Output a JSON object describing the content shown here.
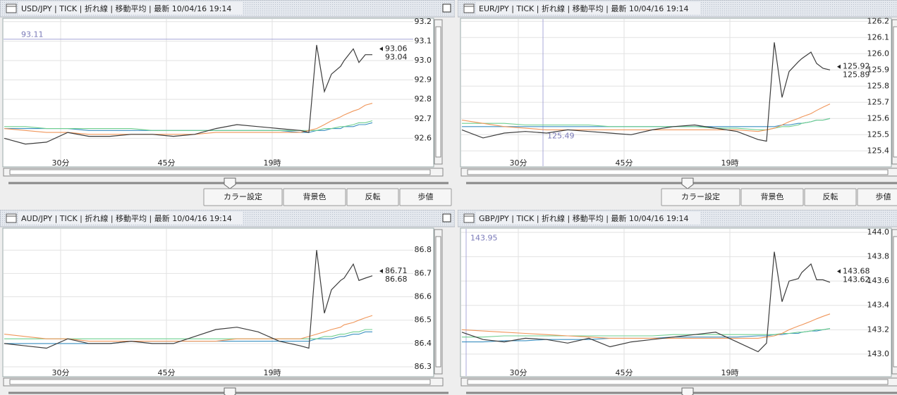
{
  "chart_data": [
    {
      "type": "line",
      "title": "USD/JPY | TICK | 折れ線 | 移動平均 | 最新 10/04/16 19:14",
      "x": [
        22,
        25,
        28,
        31,
        34,
        37,
        40,
        43,
        46,
        49,
        52,
        55,
        58,
        61,
        64,
        65.2,
        66.3,
        67.4,
        68.4,
        69.7,
        70.2,
        71.5,
        72.3,
        73.2,
        74.2
      ],
      "xlim": [
        22,
        79.8
      ],
      "xticks": [
        {
          "value": 30,
          "label": "30分"
        },
        {
          "value": 45,
          "label": "45分"
        },
        {
          "value": 60,
          "label": "19時"
        }
      ],
      "ylim": [
        92.46,
        93.21
      ],
      "yticks": [
        93.2,
        93.1,
        {
          "value": 93,
          "label": "93.0"
        },
        92.9,
        92.8,
        92.7,
        92.6
      ],
      "grid": true,
      "series": [
        {
          "color": "#3c3c3c",
          "values": [
            92.6,
            92.57,
            92.58,
            92.63,
            92.61,
            92.61,
            92.62,
            92.62,
            92.61,
            92.62,
            92.65,
            92.67,
            92.66,
            92.65,
            92.64,
            92.63,
            93.08,
            92.84,
            92.93,
            92.97,
            93.0,
            93.06,
            92.99,
            93.03,
            93.03
          ]
        },
        {
          "color": "#f0965a",
          "values": [
            92.65,
            92.64,
            92.63,
            92.63,
            92.62,
            92.62,
            92.62,
            92.62,
            92.62,
            92.62,
            92.63,
            92.63,
            92.63,
            92.63,
            92.63,
            92.64,
            92.65,
            92.67,
            92.69,
            92.71,
            92.72,
            92.74,
            92.75,
            92.77,
            92.78
          ]
        },
        {
          "color": "#6fcf8f",
          "values": [
            92.66,
            92.66,
            92.65,
            92.65,
            92.65,
            92.65,
            92.65,
            92.64,
            92.64,
            92.64,
            92.64,
            92.64,
            92.64,
            92.64,
            92.64,
            92.64,
            92.64,
            92.65,
            92.65,
            92.66,
            92.66,
            92.67,
            92.68,
            92.68,
            92.69
          ]
        },
        {
          "color": "#3a8fc0",
          "values": [
            92.65,
            92.65,
            92.65,
            92.65,
            92.64,
            92.64,
            92.64,
            92.64,
            92.64,
            92.64,
            92.64,
            92.64,
            92.64,
            92.64,
            92.63,
            92.63,
            92.64,
            92.64,
            92.65,
            92.65,
            92.66,
            92.66,
            92.67,
            92.67,
            92.68
          ]
        }
      ],
      "price_labels": [
        93.06,
        93.04
      ],
      "marker": {
        "y": 93.11
      },
      "buttons": [
        "カラー設定",
        "背景色",
        "反転",
        "歩値"
      ]
    },
    {
      "type": "line",
      "title": "EUR/JPY | TICK | 折れ線 | 移動平均 | 最新 10/04/16 19:14",
      "x": [
        22,
        25,
        28,
        31,
        34,
        37,
        40,
        43,
        46,
        49,
        52,
        55,
        58,
        61,
        64,
        65.2,
        66.3,
        67.4,
        68.4,
        69.7,
        70.2,
        71.5,
        72.3,
        73.2,
        74.2
      ],
      "xlim": [
        22,
        79.8
      ],
      "xticks": [
        {
          "value": 30,
          "label": "30分"
        },
        {
          "value": 45,
          "label": "45分"
        },
        {
          "value": 60,
          "label": "19時"
        }
      ],
      "ylim": [
        125.31,
        126.21
      ],
      "yticks": [
        126.2,
        126.1,
        {
          "value": 126,
          "label": "126.0"
        },
        125.9,
        125.8,
        125.7,
        125.6,
        125.5,
        125.4
      ],
      "grid": true,
      "series": [
        {
          "color": "#3c3c3c",
          "values": [
            125.53,
            125.48,
            125.51,
            125.52,
            125.51,
            125.53,
            125.52,
            125.51,
            125.5,
            125.53,
            125.55,
            125.56,
            125.54,
            125.52,
            125.47,
            125.46,
            126.07,
            125.73,
            125.89,
            125.95,
            125.97,
            126.01,
            125.94,
            125.91,
            125.9
          ]
        },
        {
          "color": "#f0965a",
          "values": [
            125.59,
            125.57,
            125.55,
            125.54,
            125.53,
            125.53,
            125.53,
            125.53,
            125.53,
            125.53,
            125.53,
            125.53,
            125.53,
            125.53,
            125.52,
            125.53,
            125.54,
            125.56,
            125.58,
            125.6,
            125.61,
            125.63,
            125.65,
            125.67,
            125.69
          ]
        },
        {
          "color": "#6fcf8f",
          "values": [
            125.57,
            125.57,
            125.57,
            125.56,
            125.56,
            125.56,
            125.56,
            125.55,
            125.55,
            125.55,
            125.55,
            125.55,
            125.54,
            125.54,
            125.53,
            125.53,
            125.54,
            125.55,
            125.55,
            125.56,
            125.57,
            125.58,
            125.59,
            125.59,
            125.6
          ]
        },
        {
          "color": "#3a8fc0",
          "values": [
            125.55,
            125.55,
            125.55,
            125.55,
            125.55,
            125.55,
            125.55,
            125.55,
            125.55,
            125.55,
            125.55,
            125.55,
            125.55,
            125.55,
            125.55,
            125.55,
            125.55,
            125.56,
            125.56,
            125.57,
            125.57,
            125.58,
            125.59,
            125.59,
            125.6
          ]
        }
      ],
      "price_labels": [
        125.92,
        125.89
      ],
      "marker": {
        "x": 33.5,
        "y": 125.49
      },
      "buttons": [
        "カラー設定",
        "背景色",
        "反転",
        "歩値"
      ]
    },
    {
      "type": "line",
      "title": "AUD/JPY | TICK | 折れ線 | 移動平均 | 最新 10/04/16 19:14",
      "x": [
        22,
        25,
        28,
        31,
        34,
        37,
        40,
        43,
        46,
        49,
        52,
        55,
        58,
        61,
        64,
        65.2,
        66.3,
        67.4,
        68.4,
        69.7,
        70.2,
        71.5,
        72.3,
        73.2,
        74.2
      ],
      "xlim": [
        22,
        79.8
      ],
      "xticks": [
        {
          "value": 30,
          "label": "30分"
        },
        {
          "value": 45,
          "label": "45分"
        },
        {
          "value": 60,
          "label": "19時"
        }
      ],
      "ylim": [
        86.264,
        86.888
      ],
      "yticks": [
        86.8,
        86.7,
        86.6,
        86.5,
        86.4,
        86.3
      ],
      "grid": true,
      "series": [
        {
          "color": "#3c3c3c",
          "values": [
            86.4,
            86.39,
            86.38,
            86.42,
            86.4,
            86.4,
            86.41,
            86.4,
            86.4,
            86.43,
            86.46,
            86.47,
            86.45,
            86.41,
            86.39,
            86.38,
            86.8,
            86.53,
            86.63,
            86.67,
            86.68,
            86.74,
            86.67,
            86.68,
            86.69
          ]
        },
        {
          "color": "#f0965a",
          "values": [
            86.44,
            86.43,
            86.42,
            86.42,
            86.41,
            86.41,
            86.41,
            86.41,
            86.41,
            86.41,
            86.41,
            86.42,
            86.42,
            86.42,
            86.42,
            86.43,
            86.44,
            86.45,
            86.46,
            86.47,
            86.48,
            86.49,
            86.5,
            86.51,
            86.52
          ]
        },
        {
          "color": "#6fcf8f",
          "values": [
            86.42,
            86.42,
            86.42,
            86.42,
            86.42,
            86.42,
            86.42,
            86.42,
            86.42,
            86.42,
            86.42,
            86.42,
            86.42,
            86.42,
            86.42,
            86.42,
            86.42,
            86.43,
            86.43,
            86.44,
            86.44,
            86.45,
            86.45,
            86.46,
            86.46
          ]
        },
        {
          "color": "#3a8fc0",
          "values": [
            86.4,
            86.4,
            86.4,
            86.4,
            86.4,
            86.4,
            86.41,
            86.41,
            86.41,
            86.41,
            86.41,
            86.41,
            86.41,
            86.41,
            86.41,
            86.41,
            86.42,
            86.42,
            86.42,
            86.43,
            86.43,
            86.44,
            86.44,
            86.45,
            86.45
          ]
        }
      ],
      "price_labels": [
        86.71,
        86.68
      ]
    },
    {
      "type": "line",
      "title": "GBP/JPY | TICK | 折れ線 | 移動平均 | 最新 10/04/16 19:14",
      "x": [
        22,
        25,
        28,
        31,
        34,
        37,
        40,
        43,
        46,
        49,
        52,
        55,
        58,
        61,
        64,
        65.2,
        66.3,
        67.4,
        68.4,
        69.7,
        70.2,
        71.5,
        72.3,
        73.2,
        74.2
      ],
      "xlim": [
        22,
        79.8
      ],
      "xticks": [
        {
          "value": 30,
          "label": "30分"
        },
        {
          "value": 45,
          "label": "45分"
        },
        {
          "value": 60,
          "label": "19時"
        }
      ],
      "ylim": [
        142.826,
        144.023
      ],
      "yticks": [
        {
          "value": 144,
          "label": "144.0"
        },
        143.8,
        143.6,
        143.4,
        143.2,
        {
          "value": 143,
          "label": "143.0"
        }
      ],
      "grid": true,
      "series": [
        {
          "color": "#3c3c3c",
          "values": [
            143.18,
            143.12,
            143.1,
            143.13,
            143.12,
            143.09,
            143.13,
            143.06,
            143.1,
            143.12,
            143.14,
            143.16,
            143.18,
            143.1,
            143.02,
            143.09,
            143.84,
            143.43,
            143.6,
            143.62,
            143.67,
            143.74,
            143.61,
            143.61,
            143.59
          ]
        },
        {
          "color": "#f0965a",
          "values": [
            143.2,
            143.19,
            143.18,
            143.17,
            143.16,
            143.15,
            143.14,
            143.13,
            143.13,
            143.13,
            143.13,
            143.13,
            143.13,
            143.13,
            143.13,
            143.14,
            143.15,
            143.17,
            143.2,
            143.23,
            143.24,
            143.27,
            143.29,
            143.31,
            143.33
          ]
        },
        {
          "color": "#6fcf8f",
          "values": [
            143.14,
            143.14,
            143.15,
            143.15,
            143.15,
            143.15,
            143.15,
            143.15,
            143.15,
            143.15,
            143.16,
            143.16,
            143.16,
            143.16,
            143.16,
            143.16,
            143.16,
            143.17,
            143.17,
            143.18,
            143.18,
            143.19,
            143.2,
            143.2,
            143.21
          ]
        },
        {
          "color": "#3a8fc0",
          "values": [
            143.1,
            143.1,
            143.11,
            143.11,
            143.12,
            143.12,
            143.12,
            143.13,
            143.13,
            143.13,
            143.14,
            143.14,
            143.14,
            143.14,
            143.15,
            143.15,
            143.16,
            143.16,
            143.17,
            143.17,
            143.18,
            143.19,
            143.19,
            143.2,
            143.21
          ]
        }
      ],
      "price_labels": [
        143.68,
        143.62
      ],
      "marker": {
        "x": 22.6,
        "y": 143.95
      }
    }
  ]
}
